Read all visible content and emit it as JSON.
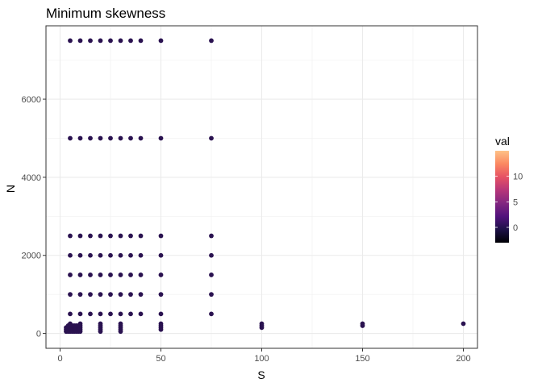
{
  "chart_data": {
    "type": "scatter",
    "title": "Minimum skewness",
    "xlabel": "S",
    "ylabel": "N",
    "xlim": [
      -7,
      207
    ],
    "ylim": [
      -380,
      7880
    ],
    "x_ticks": [
      0,
      50,
      100,
      150,
      200
    ],
    "x_minor": [
      25,
      75,
      125,
      175
    ],
    "y_ticks": [
      0,
      2000,
      4000,
      6000
    ],
    "y_minor": [
      1000,
      3000,
      5000,
      7000
    ],
    "grid": true,
    "legend": {
      "title": "val",
      "placement": "right",
      "range": [
        -3,
        15
      ],
      "ticks": [
        0,
        5,
        10
      ],
      "colors": [
        "#000004",
        "#1d1147",
        "#51127c",
        "#822681",
        "#b63679",
        "#e65164",
        "#fb8861",
        "#fec287"
      ]
    },
    "point_color": "#2a1250",
    "points": {
      "grid_x": [
        5,
        10,
        15,
        20,
        25,
        30,
        35,
        40,
        50,
        75
      ],
      "grid_y": [
        500,
        1000,
        1500,
        2000,
        2500,
        5000,
        7500
      ],
      "x40_y": [
        500,
        1000,
        1500,
        2000,
        2500,
        5000,
        7500
      ],
      "x75_y": [
        500,
        1000,
        1500,
        2000,
        2500,
        5000,
        7500
      ],
      "low_n": [
        {
          "x": 3,
          "y": [
            50,
            100,
            150
          ]
        },
        {
          "x": 4,
          "y": [
            50,
            100,
            150,
            200
          ]
        },
        {
          "x": 5,
          "y": [
            50,
            100,
            150,
            200,
            250
          ]
        },
        {
          "x": 6,
          "y": [
            50,
            100,
            150,
            200
          ]
        },
        {
          "x": 7,
          "y": [
            50,
            100,
            150,
            200
          ]
        },
        {
          "x": 8,
          "y": [
            50,
            100,
            150,
            200
          ]
        },
        {
          "x": 9,
          "y": [
            50,
            100,
            150,
            200
          ]
        },
        {
          "x": 10,
          "y": [
            50,
            100,
            150,
            200,
            250
          ]
        },
        {
          "x": 20,
          "y": [
            50,
            100,
            150,
            200,
            250
          ]
        },
        {
          "x": 30,
          "y": [
            50,
            100,
            150,
            200,
            250
          ]
        },
        {
          "x": 50,
          "y": [
            100,
            150,
            200,
            250
          ]
        },
        {
          "x": 100,
          "y": [
            150,
            200,
            250
          ]
        },
        {
          "x": 150,
          "y": [
            200,
            250
          ]
        },
        {
          "x": 200,
          "y": [
            250
          ]
        }
      ]
    }
  }
}
